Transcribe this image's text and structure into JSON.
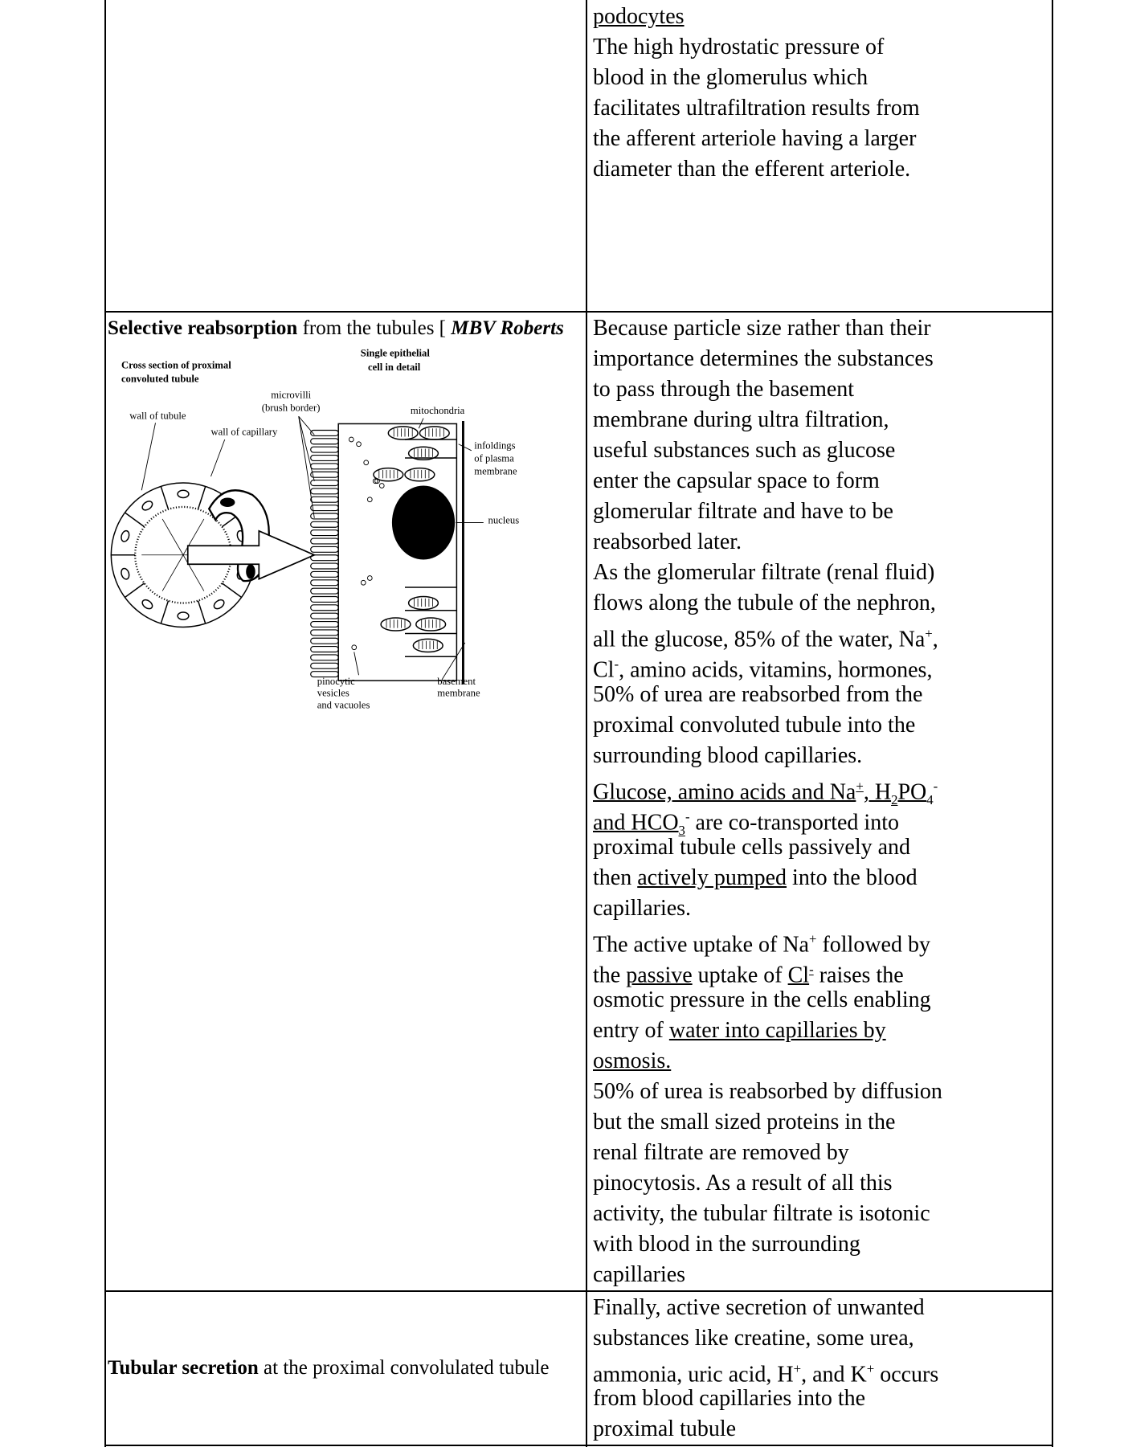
{
  "table": {
    "rows": [
      {
        "right": [
          [
            {
              "text": "podocytes",
              "underline": true
            }
          ],
          "The high hydrostatic pressure of",
          "blood in the glomerulus which",
          "facilitates ultrafiltration results from",
          "the afferent arteriole having a larger",
          "diameter than the efferent arteriole."
        ]
      },
      {
        "left": {
          "heading": [
            {
              "text": "Selective reabsorption",
              "bold": true
            },
            " from the tubules [ ",
            {
              "text": "MBV Roberts",
              "bold": true,
              "italic": true
            }
          ],
          "figure": {
            "labels": [
              "Cross section of proximal",
              "convoluted tubule",
              "Single epithelial",
              "cell in detail",
              "microvilli",
              "(brush border)",
              "mitochondria",
              "wall of tubule",
              "wall of capillary",
              "infoldings",
              "of plasma",
              "membrane",
              "nucleus",
              "pinocytic",
              "vesicles",
              "and vacuoles",
              "basement",
              "membrane"
            ]
          }
        },
        "right": [
          "Because particle size rather than their",
          "importance determines the substances",
          "to pass through the basement",
          "membrane during ultra filtration,",
          "useful substances such as glucose",
          "enter the capsular space to form",
          "glomerular filtrate and have to be",
          "reabsorbed later.",
          "As the glomerular filtrate (renal fluid)",
          "flows along the tubule of the nephron,",
          [
            "all the glucose, 85% of the water, Na",
            {
              "text": "+",
              "sup": true
            },
            ","
          ],
          [
            "Cl",
            {
              "text": "-",
              "sup": true
            },
            ", amino acids, vitamins, hormones,"
          ],
          "50% of urea are reabsorbed from the",
          "proximal convoluted tubule into the",
          "surrounding blood capillaries.",
          [
            {
              "text": "Glucose, amino acids and Na",
              "underline": true
            },
            {
              "text": "+",
              "sup": true,
              "underline": true
            },
            {
              "text": ", H",
              "underline": true
            },
            {
              "text": "2",
              "sub": true,
              "underline": true
            },
            {
              "text": "PO",
              "underline": true
            },
            {
              "text": "4",
              "sub": true
            },
            {
              "text": "-",
              "sup": true
            }
          ],
          [
            {
              "text": "and HCO",
              "underline": true
            },
            {
              "text": "3",
              "sub": true,
              "underline": true
            },
            {
              "text": "-",
              "sup": true
            },
            " are co-transported into"
          ],
          "proximal tubule cells passively and",
          [
            "then ",
            {
              "text": "actively pumped",
              "underline": true
            },
            " into the blood"
          ],
          "capillaries.",
          [
            "The active uptake of Na",
            {
              "text": "+",
              "sup": true
            },
            " followed by"
          ],
          [
            "the ",
            {
              "text": "passive",
              "underline": true
            },
            " uptake of ",
            {
              "text": "Cl",
              "underline": true
            },
            {
              "text": "-",
              "sup": true,
              "underline": true
            },
            " raises the"
          ],
          "osmotic pressure in the cells enabling",
          [
            "entry of ",
            {
              "text": "water into capillaries by",
              "underline": true
            }
          ],
          [
            {
              "text": "osmosis.",
              "underline": true
            }
          ],
          "50% of urea is reabsorbed by diffusion",
          "but the small sized proteins in the",
          "renal filtrate are removed by",
          "pinocytosis. As a result of all this",
          "activity, the tubular filtrate is isotonic",
          "with blood in the surrounding",
          "capillaries"
        ]
      },
      {
        "left": [
          {
            "text": "Tubular secretion",
            "bold": true
          },
          " at the proximal convolulated tubule"
        ],
        "right": [
          "Finally, active secretion of unwanted",
          "substances like creatine, some urea,",
          [
            "ammonia, uric acid, H",
            {
              "text": "+",
              "sup": true
            },
            ", and K",
            {
              "text": "+",
              "sup": true
            },
            " occurs"
          ],
          "from blood capillaries into the",
          "proximal tubule"
        ]
      }
    ]
  }
}
